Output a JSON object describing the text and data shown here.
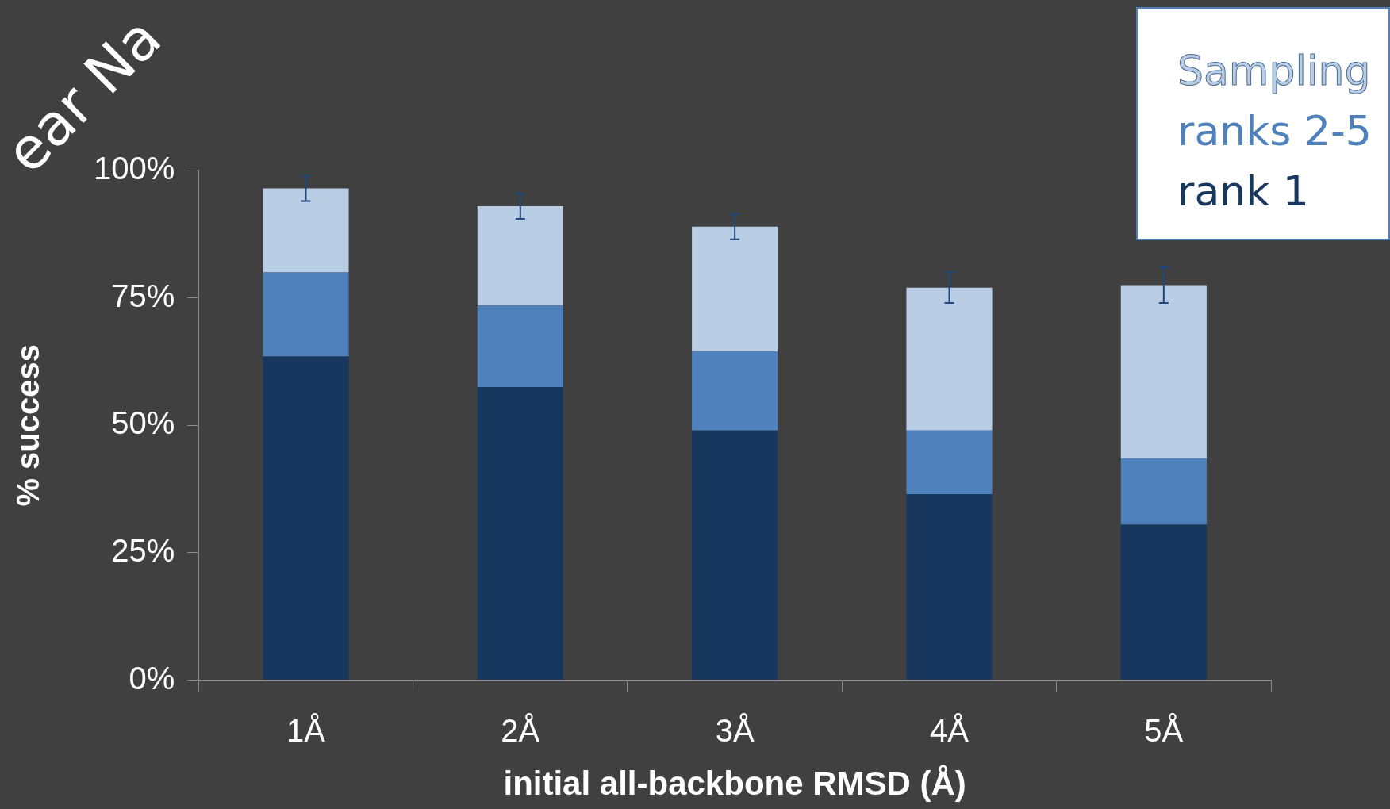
{
  "chart_data": {
    "type": "bar",
    "stacked": true,
    "title": "ear Na",
    "xlabel": "initial all-backbone RMSD (Å)",
    "ylabel": "% success",
    "categories": [
      "1Å",
      "2Å",
      "3Å",
      "4Å",
      "5Å"
    ],
    "series": [
      {
        "name": "rank 1",
        "color": "#17375e",
        "values": [
          63.5,
          57.5,
          49,
          36.5,
          30.5
        ]
      },
      {
        "name": "ranks 2-5",
        "color": "#4f81bd",
        "values": [
          16.5,
          16,
          15.5,
          12.5,
          13
        ]
      },
      {
        "name": "Sampling",
        "color": "#b9cde5",
        "values": [
          16.5,
          19.5,
          24.5,
          28,
          34
        ],
        "errors": [
          2.5,
          2.5,
          2.5,
          3,
          3.5
        ]
      }
    ],
    "ylim": [
      0,
      100
    ],
    "yticks": [
      {
        "value": 0,
        "label": "0%"
      },
      {
        "value": 25,
        "label": "25%"
      },
      {
        "value": 50,
        "label": "50%"
      },
      {
        "value": 75,
        "label": "75%"
      },
      {
        "value": 100,
        "label": "100%"
      }
    ],
    "grid": false,
    "legend": "top right"
  }
}
